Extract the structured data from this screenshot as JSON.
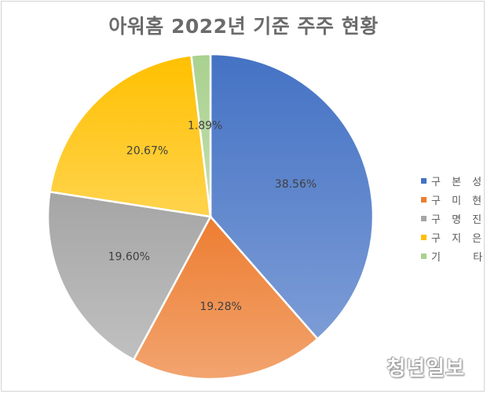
{
  "chart_data": {
    "type": "pie",
    "title": "아워홈 2022년 기준 주주 현황",
    "slices": [
      {
        "name": "구본성",
        "legend_label": "구 본 성",
        "value": 38.56,
        "label": "38.56%",
        "color": "#4472c4"
      },
      {
        "name": "구미현",
        "legend_label": "구 미 현",
        "value": 19.28,
        "label": "19.28%",
        "color": "#ed7d31"
      },
      {
        "name": "구명진",
        "legend_label": "구 명 진",
        "value": 19.6,
        "label": "19.60%",
        "color": "#a5a5a5"
      },
      {
        "name": "구지은",
        "legend_label": "구 지 은",
        "value": 20.67,
        "label": "20.67%",
        "color": "#ffc000"
      },
      {
        "name": "기타",
        "legend_label": "기 　 타",
        "value": 1.89,
        "label": "1.89%",
        "color": "#a9d18e"
      }
    ],
    "legend_position": "right"
  },
  "watermark": "청년일보"
}
